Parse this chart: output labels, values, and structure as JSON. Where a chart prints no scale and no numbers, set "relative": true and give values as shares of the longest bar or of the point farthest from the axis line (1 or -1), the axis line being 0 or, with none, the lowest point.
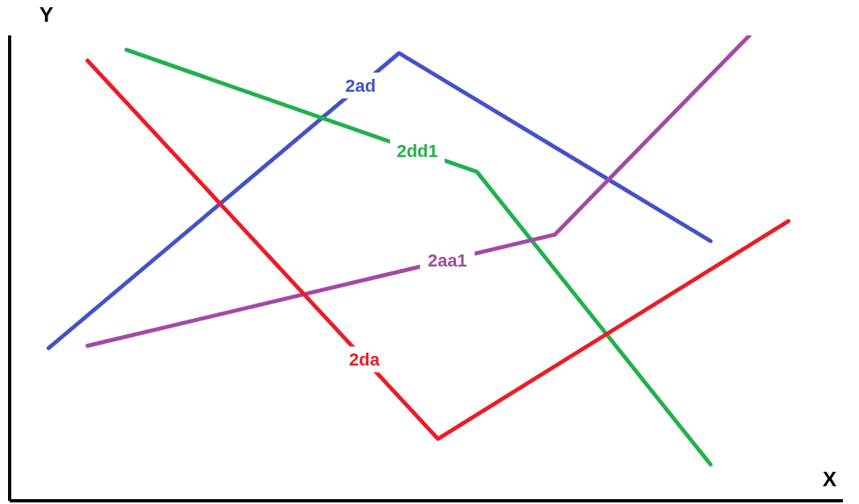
{
  "chart_data": {
    "type": "line",
    "relative": true,
    "xlabel": "X",
    "ylabel": "Y",
    "legend": false,
    "marker": "none",
    "line_style": "solid",
    "grid": false,
    "categories": [
      null,
      null,
      null,
      null,
      null,
      null,
      null,
      null,
      null,
      null,
      null,
      null,
      null,
      null,
      null,
      null,
      null,
      null,
      null,
      null,
      null,
      null
    ],
    "series": [
      {
        "name": "2ad",
        "color": "#4452c8",
        "values": [
          null,
          0.328,
          null,
          null,
          null,
          null,
          null,
          null,
          null,
          null,
          0.962,
          null,
          null,
          null,
          null,
          null,
          null,
          null,
          0.558,
          null,
          null,
          null
        ]
      },
      {
        "name": "2dd1",
        "color": "#22b14c",
        "values": [
          null,
          null,
          null,
          0.969,
          null,
          null,
          null,
          null,
          null,
          null,
          null,
          null,
          0.707,
          null,
          null,
          null,
          null,
          null,
          0.078,
          null,
          null,
          null
        ]
      },
      {
        "name": "2aa1",
        "color": "#a349a4",
        "values": [
          null,
          null,
          0.333,
          null,
          null,
          null,
          null,
          null,
          null,
          null,
          null,
          null,
          null,
          null,
          0.572,
          null,
          null,
          null,
          null,
          1.0,
          null,
          null
        ]
      },
      {
        "name": "2da",
        "color": "#ed1c24",
        "values": [
          null,
          null,
          0.946,
          null,
          null,
          null,
          null,
          null,
          null,
          null,
          null,
          0.133,
          null,
          null,
          null,
          null,
          null,
          null,
          null,
          null,
          0.601,
          null
        ]
      }
    ]
  }
}
